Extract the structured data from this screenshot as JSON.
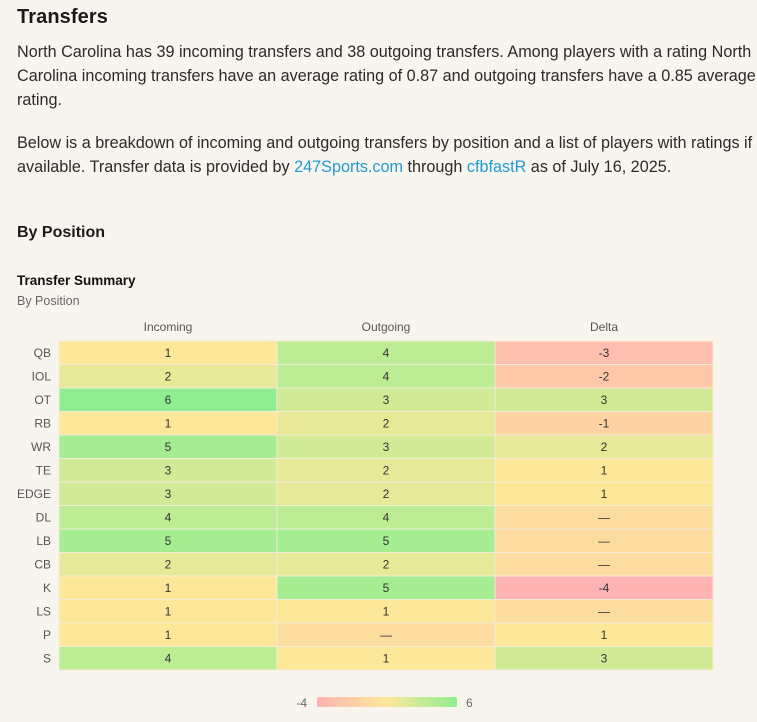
{
  "section_title": "Transfers",
  "intro": {
    "p1": "North Carolina has 39 incoming transfers and 38 outgoing transfers. Among players with a rating North Carolina incoming transfers have an average rating of 0.87 and outgoing transfers have a 0.85 average rating.",
    "p2_before": "Below is a breakdown of incoming and outgoing transfers by position and a list of players with ratings if available. Transfer data is provided by ",
    "link1": "247Sports.com",
    "p2_middle": " through ",
    "link2": "cfbfastR",
    "p2_after": " as of July 16, 2025."
  },
  "subsection_title": "By Position",
  "chart_data": {
    "type": "heatmap",
    "title": "Transfer Summary",
    "subtitle": "By Position",
    "columns": [
      "Incoming",
      "Outgoing",
      "Delta"
    ],
    "rows": [
      "QB",
      "IOL",
      "OT",
      "RB",
      "WR",
      "TE",
      "EDGE",
      "DL",
      "LB",
      "CB",
      "K",
      "LS",
      "P",
      "S"
    ],
    "values": [
      [
        1,
        4,
        -3
      ],
      [
        2,
        4,
        -2
      ],
      [
        6,
        3,
        3
      ],
      [
        1,
        2,
        -1
      ],
      [
        5,
        3,
        2
      ],
      [
        3,
        2,
        1
      ],
      [
        3,
        2,
        1
      ],
      [
        4,
        4,
        0
      ],
      [
        5,
        5,
        0
      ],
      [
        2,
        2,
        0
      ],
      [
        1,
        5,
        -4
      ],
      [
        1,
        1,
        0
      ],
      [
        1,
        0,
        1
      ],
      [
        4,
        1,
        3
      ]
    ],
    "zero_label": "—",
    "color_scale": {
      "min": -4,
      "max": 6,
      "colors": [
        "#ffb3b3",
        "#fde89a",
        "#90ee90"
      ]
    },
    "legend": {
      "min_label": "-4",
      "max_label": "6",
      "placement": "bottom-center"
    }
  }
}
